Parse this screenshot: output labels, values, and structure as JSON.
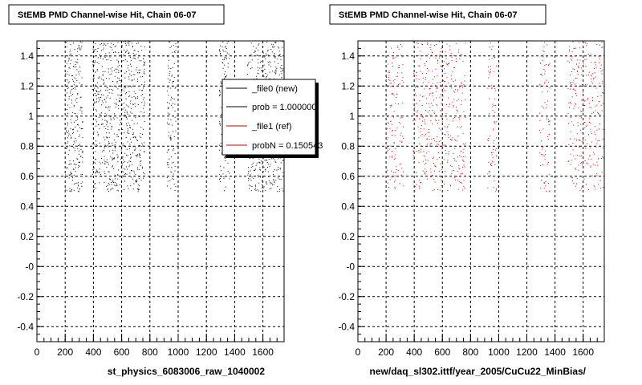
{
  "chart_data": [
    {
      "type": "scatter",
      "title": "StEMB PMD Channel-wise Hit, Chain 06-07",
      "xlabel": "st_physics_6083006_raw_1040002",
      "ylabel": "",
      "xlim": [
        0,
        1750
      ],
      "ylim": [
        -0.5,
        1.5
      ],
      "x_ticks": [
        0,
        200,
        400,
        600,
        800,
        1000,
        1200,
        1400,
        1600
      ],
      "y_ticks": [
        -0.4,
        -0.2,
        0,
        0.2,
        0.4,
        0.6,
        0.8,
        1,
        1.2,
        1.4
      ],
      "y_tick_labels": [
        "-0.4",
        "-0.2",
        "-0",
        "0.2",
        "0.4",
        "0.6",
        "0.8",
        "1",
        "1.2",
        "1.4"
      ],
      "grid": true,
      "series": [
        {
          "color": "#000000",
          "y_range": [
            0.5,
            1.5
          ],
          "x_bands": [
            [
              200,
              320
            ],
            [
              390,
              760
            ],
            [
              920,
              980
            ],
            [
              1290,
              1360
            ],
            [
              1490,
              1740
            ]
          ],
          "density": 0.9
        }
      ],
      "legend": {
        "placement": "top-right",
        "entries": [
          {
            "label": "_file0 (new)",
            "color": "#000000"
          },
          {
            "label": "prob = 1.000000",
            "color": "#000000"
          },
          {
            "label": "_file1 (ref)",
            "color": "#cc0000"
          },
          {
            "label": "probN = 0.150543",
            "color": "#cc0000"
          }
        ]
      }
    },
    {
      "type": "scatter",
      "title": "StEMB PMD Channel-wise Hit, Chain 06-07",
      "xlabel": "new/daq_sl302.ittf/year_2005/CuCu22_MinBias/",
      "ylabel": "",
      "xlim": [
        0,
        1750
      ],
      "ylim": [
        -0.5,
        1.5
      ],
      "x_ticks": [
        0,
        200,
        400,
        600,
        800,
        1000,
        1200,
        1400,
        1600
      ],
      "y_ticks": [
        -0.4,
        -0.2,
        0,
        0.2,
        0.4,
        0.6,
        0.8,
        1,
        1.2,
        1.4
      ],
      "y_tick_labels": [
        "-0.4",
        "-0.2",
        "-0",
        "0.2",
        "0.4",
        "0.6",
        "0.8",
        "1",
        "1.2",
        "1.4"
      ],
      "grid": true,
      "series": [
        {
          "color": "#cc0000",
          "y_range": [
            0.5,
            1.5
          ],
          "x_bands": [
            [
              200,
              320
            ],
            [
              390,
              760
            ],
            [
              920,
              980
            ],
            [
              1290,
              1360
            ],
            [
              1490,
              1740
            ]
          ],
          "density": 0.55
        }
      ]
    }
  ]
}
